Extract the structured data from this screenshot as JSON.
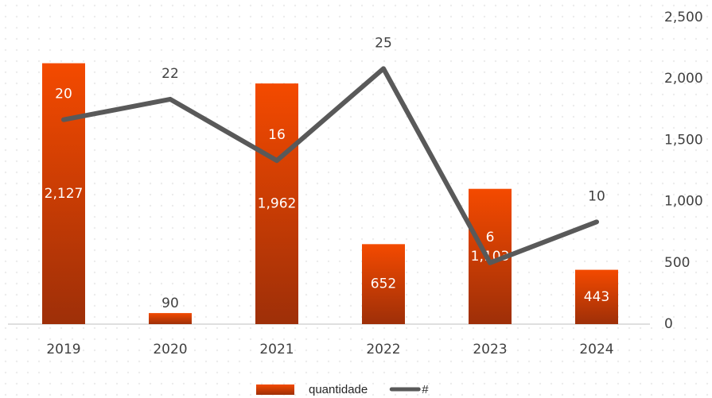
{
  "chart_data": {
    "type": "bar_line",
    "categories": [
      "2019",
      "2020",
      "2021",
      "2022",
      "2023",
      "2024"
    ],
    "series": [
      {
        "name": "quantidade",
        "type": "bar",
        "axis": "y2",
        "color": "#e84400",
        "values": [
          2127,
          90,
          1962,
          652,
          1103,
          443
        ],
        "value_labels": [
          "2,127",
          "90",
          "1,962",
          "652",
          "1,103",
          "443"
        ]
      },
      {
        "name": "#",
        "type": "line",
        "color": "#595959",
        "values": [
          20,
          22,
          16,
          25,
          6,
          10
        ]
      }
    ],
    "ylim": [
      0,
      30
    ],
    "y2lim": [
      0,
      2500
    ],
    "y2ticks": [
      0,
      {
        "value": 500,
        "label": "500"
      },
      {
        "value": 1000,
        "label": "1,000"
      },
      {
        "value": 1500,
        "label": "1,500"
      },
      {
        "value": 2000,
        "label": "2,000"
      },
      {
        "value": 2500,
        "label": "2,500"
      }
    ]
  }
}
